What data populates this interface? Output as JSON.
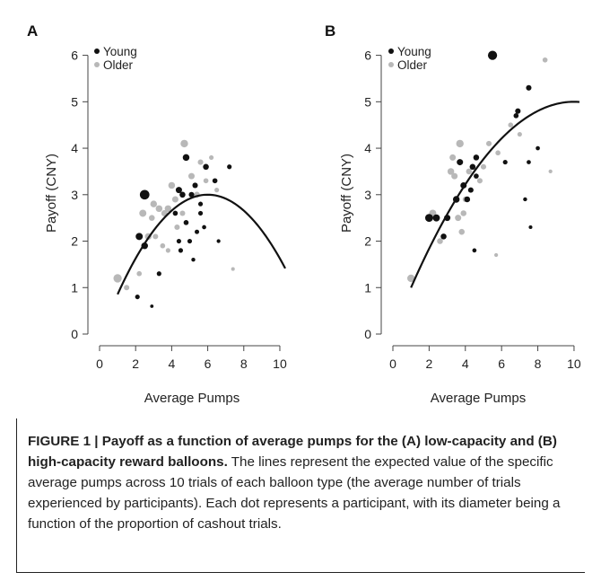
{
  "colors": {
    "young": "#111111",
    "older": "#b8b8b8",
    "curve": "#111111",
    "axis": "#444444"
  },
  "chart_data": [
    {
      "type": "scatter",
      "panel_label": "A",
      "xlabel": "Average Pumps",
      "ylabel": "Payoff (CNY)",
      "xlim": [
        0,
        10.3
      ],
      "ylim": [
        -0.1,
        6.2
      ],
      "xticks": [
        0,
        2,
        4,
        6,
        8,
        10
      ],
      "yticks": [
        0,
        1,
        2,
        3,
        4,
        5,
        6
      ],
      "grid": false,
      "legend": {
        "position": "top-left",
        "entries": [
          "Young",
          "Older"
        ]
      },
      "series": [
        {
          "name": "Young",
          "points": [
            {
              "x": 2.5,
              "y": 3.0,
              "s": 0.9
            },
            {
              "x": 2.2,
              "y": 2.1,
              "s": 0.6
            },
            {
              "x": 2.5,
              "y": 1.9,
              "s": 0.55
            },
            {
              "x": 2.1,
              "y": 0.8,
              "s": 0.3
            },
            {
              "x": 2.9,
              "y": 0.6,
              "s": 0.15
            },
            {
              "x": 3.3,
              "y": 1.3,
              "s": 0.3
            },
            {
              "x": 4.4,
              "y": 3.1,
              "s": 0.5
            },
            {
              "x": 4.6,
              "y": 3.0,
              "s": 0.45
            },
            {
              "x": 4.8,
              "y": 3.8,
              "s": 0.55
            },
            {
              "x": 5.1,
              "y": 3.0,
              "s": 0.4
            },
            {
              "x": 5.3,
              "y": 3.2,
              "s": 0.4
            },
            {
              "x": 5.6,
              "y": 2.6,
              "s": 0.3
            },
            {
              "x": 4.8,
              "y": 2.4,
              "s": 0.35
            },
            {
              "x": 5.9,
              "y": 3.6,
              "s": 0.45
            },
            {
              "x": 4.4,
              "y": 2.0,
              "s": 0.3
            },
            {
              "x": 5.0,
              "y": 2.0,
              "s": 0.3
            },
            {
              "x": 5.4,
              "y": 2.2,
              "s": 0.28
            },
            {
              "x": 5.8,
              "y": 2.3,
              "s": 0.25
            },
            {
              "x": 4.5,
              "y": 1.8,
              "s": 0.3
            },
            {
              "x": 5.2,
              "y": 1.6,
              "s": 0.22
            },
            {
              "x": 6.6,
              "y": 2.0,
              "s": 0.2
            },
            {
              "x": 6.4,
              "y": 3.3,
              "s": 0.35
            },
            {
              "x": 7.2,
              "y": 3.6,
              "s": 0.3
            },
            {
              "x": 4.2,
              "y": 2.6,
              "s": 0.35
            },
            {
              "x": 5.6,
              "y": 2.8,
              "s": 0.3
            }
          ]
        },
        {
          "name": "Older",
          "points": [
            {
              "x": 1.0,
              "y": 1.2,
              "s": 0.75
            },
            {
              "x": 1.5,
              "y": 1.0,
              "s": 0.4
            },
            {
              "x": 2.2,
              "y": 1.3,
              "s": 0.35
            },
            {
              "x": 2.4,
              "y": 2.6,
              "s": 0.6
            },
            {
              "x": 2.7,
              "y": 2.1,
              "s": 0.55
            },
            {
              "x": 3.0,
              "y": 2.8,
              "s": 0.55
            },
            {
              "x": 3.3,
              "y": 2.7,
              "s": 0.55
            },
            {
              "x": 3.6,
              "y": 2.6,
              "s": 0.5
            },
            {
              "x": 3.8,
              "y": 2.7,
              "s": 0.55
            },
            {
              "x": 4.0,
              "y": 3.2,
              "s": 0.55
            },
            {
              "x": 4.2,
              "y": 2.9,
              "s": 0.5
            },
            {
              "x": 4.7,
              "y": 4.1,
              "s": 0.65
            },
            {
              "x": 5.1,
              "y": 3.4,
              "s": 0.5
            },
            {
              "x": 5.4,
              "y": 3.0,
              "s": 0.45
            },
            {
              "x": 5.6,
              "y": 3.7,
              "s": 0.4
            },
            {
              "x": 5.9,
              "y": 3.3,
              "s": 0.35
            },
            {
              "x": 6.2,
              "y": 3.8,
              "s": 0.3
            },
            {
              "x": 6.5,
              "y": 3.1,
              "s": 0.3
            },
            {
              "x": 3.1,
              "y": 2.1,
              "s": 0.4
            },
            {
              "x": 3.5,
              "y": 1.9,
              "s": 0.35
            },
            {
              "x": 3.8,
              "y": 1.8,
              "s": 0.3
            },
            {
              "x": 4.3,
              "y": 2.3,
              "s": 0.4
            },
            {
              "x": 7.4,
              "y": 1.4,
              "s": 0.18
            },
            {
              "x": 4.6,
              "y": 2.6,
              "s": 0.4
            },
            {
              "x": 2.9,
              "y": 2.5,
              "s": 0.45
            }
          ]
        }
      ],
      "curve": {
        "name": "Expected value",
        "x_range": [
          1,
          10.3
        ],
        "vertex": [
          6.0,
          3.0
        ],
        "a": -0.0858
      }
    },
    {
      "type": "scatter",
      "panel_label": "B",
      "xlabel": "Average Pumps",
      "ylabel": "Payoff (CNY)",
      "xlim": [
        0,
        10.3
      ],
      "ylim": [
        -0.1,
        6.2
      ],
      "xticks": [
        0,
        2,
        4,
        6,
        8,
        10
      ],
      "yticks": [
        0,
        1,
        2,
        3,
        4,
        5,
        6
      ],
      "grid": false,
      "legend": {
        "position": "top-left",
        "entries": [
          "Young",
          "Older"
        ]
      },
      "series": [
        {
          "name": "Young",
          "points": [
            {
              "x": 2.0,
              "y": 2.5,
              "s": 0.7
            },
            {
              "x": 2.4,
              "y": 2.5,
              "s": 0.6
            },
            {
              "x": 3.0,
              "y": 2.5,
              "s": 0.5
            },
            {
              "x": 2.8,
              "y": 2.1,
              "s": 0.45
            },
            {
              "x": 3.5,
              "y": 2.9,
              "s": 0.55
            },
            {
              "x": 3.7,
              "y": 3.7,
              "s": 0.5
            },
            {
              "x": 3.9,
              "y": 3.2,
              "s": 0.5
            },
            {
              "x": 4.1,
              "y": 2.9,
              "s": 0.45
            },
            {
              "x": 4.4,
              "y": 3.6,
              "s": 0.45
            },
            {
              "x": 4.6,
              "y": 3.8,
              "s": 0.45
            },
            {
              "x": 4.3,
              "y": 3.1,
              "s": 0.4
            },
            {
              "x": 4.6,
              "y": 3.4,
              "s": 0.35
            },
            {
              "x": 5.5,
              "y": 6.0,
              "s": 0.85
            },
            {
              "x": 6.9,
              "y": 4.8,
              "s": 0.4
            },
            {
              "x": 6.8,
              "y": 4.7,
              "s": 0.35
            },
            {
              "x": 7.5,
              "y": 5.3,
              "s": 0.4
            },
            {
              "x": 6.2,
              "y": 3.7,
              "s": 0.3
            },
            {
              "x": 7.5,
              "y": 3.7,
              "s": 0.25
            },
            {
              "x": 8.0,
              "y": 4.0,
              "s": 0.25
            },
            {
              "x": 7.3,
              "y": 2.9,
              "s": 0.22
            },
            {
              "x": 7.6,
              "y": 2.3,
              "s": 0.18
            },
            {
              "x": 4.5,
              "y": 1.8,
              "s": 0.25
            }
          ]
        },
        {
          "name": "Older",
          "points": [
            {
              "x": 1.0,
              "y": 1.2,
              "s": 0.65
            },
            {
              "x": 2.2,
              "y": 2.6,
              "s": 0.6
            },
            {
              "x": 2.6,
              "y": 2.0,
              "s": 0.45
            },
            {
              "x": 3.2,
              "y": 3.5,
              "s": 0.55
            },
            {
              "x": 3.4,
              "y": 3.4,
              "s": 0.5
            },
            {
              "x": 3.7,
              "y": 4.1,
              "s": 0.65
            },
            {
              "x": 3.6,
              "y": 2.5,
              "s": 0.5
            },
            {
              "x": 3.9,
              "y": 2.6,
              "s": 0.45
            },
            {
              "x": 3.8,
              "y": 2.2,
              "s": 0.45
            },
            {
              "x": 4.2,
              "y": 3.5,
              "s": 0.45
            },
            {
              "x": 4.8,
              "y": 3.3,
              "s": 0.4
            },
            {
              "x": 5.0,
              "y": 3.6,
              "s": 0.4
            },
            {
              "x": 5.3,
              "y": 4.1,
              "s": 0.4
            },
            {
              "x": 5.8,
              "y": 3.9,
              "s": 0.35
            },
            {
              "x": 6.5,
              "y": 4.5,
              "s": 0.35
            },
            {
              "x": 7.0,
              "y": 4.3,
              "s": 0.3
            },
            {
              "x": 8.4,
              "y": 5.9,
              "s": 0.35
            },
            {
              "x": 8.7,
              "y": 3.5,
              "s": 0.2
            },
            {
              "x": 5.7,
              "y": 1.7,
              "s": 0.2
            },
            {
              "x": 3.3,
              "y": 3.8,
              "s": 0.5
            },
            {
              "x": 4.0,
              "y": 2.9,
              "s": 0.4
            }
          ]
        }
      ],
      "curve": {
        "name": "Expected value",
        "x_range": [
          1,
          10.3
        ],
        "vertex": [
          10.0,
          5.0
        ],
        "a": -0.0494
      }
    }
  ],
  "caption": {
    "figure_label": "FIGURE 1 | Payoff as a function of average pumps for the (A) low-capacity and (B) high-capacity reward balloons.",
    "text": " The lines represent the expected value of the specific average pumps across 10 trials of each balloon type (the average number of trials experienced by participants). Each dot represents a participant, with its diameter being a function of the proportion of cashout trials."
  }
}
